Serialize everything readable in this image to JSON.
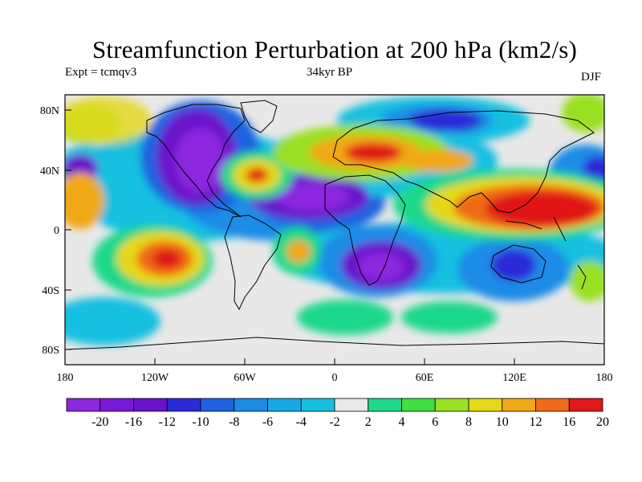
{
  "title": "Streamfunction Perturbation at 200 hPa (km2/s)",
  "subtitle_left": "Expt = tcmqv3",
  "subtitle_center": "34kyr BP",
  "subtitle_right": "DJF",
  "lat_labels": [
    "80N",
    "40N",
    "0",
    "40S",
    "80S"
  ],
  "lon_labels": [
    "180",
    "120W",
    "60W",
    "0",
    "60E",
    "120E",
    "180"
  ],
  "colorbar": {
    "labels": [
      "-20",
      "-16",
      "-12",
      "-10",
      "-8",
      "-6",
      "-4",
      "-2",
      "2",
      "4",
      "6",
      "8",
      "10",
      "12",
      "16",
      "20"
    ],
    "colors": [
      "#8c28e0",
      "#7a18d8",
      "#6a12cc",
      "#2b2bd8",
      "#1e64e0",
      "#1a8ce6",
      "#17a8e6",
      "#17c0e0",
      "#e8e8e8",
      "#1fd88a",
      "#40e040",
      "#9ae024",
      "#e6d818",
      "#f0a818",
      "#ef6a18",
      "#e01818"
    ]
  }
}
